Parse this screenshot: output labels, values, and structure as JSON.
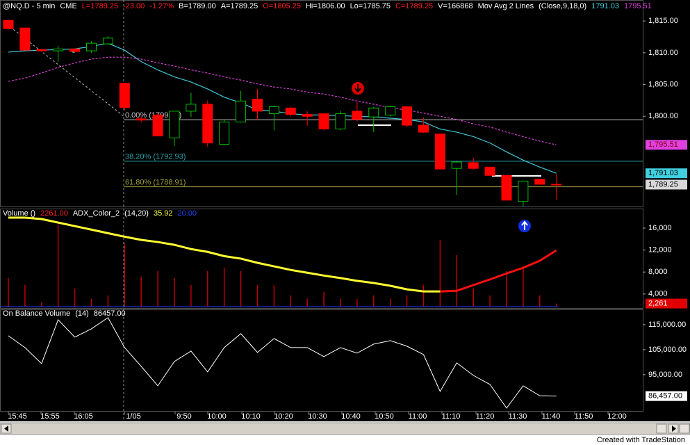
{
  "header": [
    {
      "text": "@NQ.D - 5 min",
      "color": "#ffffff"
    },
    {
      "text": "CME",
      "color": "#ffffff"
    },
    {
      "text": "L=1789.25",
      "color": "#ff2020"
    },
    {
      "text": "-23.00",
      "color": "#ff2020"
    },
    {
      "text": "-1.27%",
      "color": "#ff2020"
    },
    {
      "text": "B=1789.00",
      "color": "#ffffff"
    },
    {
      "text": "A=1789.25",
      "color": "#ffffff"
    },
    {
      "text": "O=1805.25",
      "color": "#ff2020"
    },
    {
      "text": "Hi=1806.00",
      "color": "#ffffff"
    },
    {
      "text": "Lo=1785.75",
      "color": "#ffffff"
    },
    {
      "text": "C=1789.25",
      "color": "#ff2020"
    },
    {
      "text": "V=166868",
      "color": "#ffffff"
    },
    {
      "text": "Mov Avg 2 Lines",
      "color": "#ffffff"
    },
    {
      "text": "(Close,9,18,0)",
      "color": "#ffffff"
    },
    {
      "text": "1791.03",
      "color": "#40d0e0"
    },
    {
      "text": "1795.51",
      "color": "#e040e0"
    }
  ],
  "x_labels": [
    "15:45",
    "15:55",
    "16:05",
    "1/05",
    "9:50",
    "10:00",
    "10:10",
    "10:20",
    "10:30",
    "10:40",
    "10:50",
    "11:00",
    "11:10",
    "11:20",
    "11:30",
    "11:40",
    "11:50",
    "12:00"
  ],
  "footer": "Created with TradeStation",
  "chart_data": [
    {
      "type": "candlestick",
      "up_color": "#00c000",
      "down_color": "#ff0000",
      "open": [
        1815.1,
        1813.9,
        1810.5,
        1810.3,
        1810.6,
        1810.3,
        1811.4,
        1805.2,
        1799.6,
        1800.2,
        1796.6,
        1800.8,
        1801.9,
        1795.6,
        1799.1,
        1802.7,
        1800.4,
        1801.3,
        1800.3,
        1800.4,
        1798.0,
        1800.8,
        1799.9,
        1800.2,
        1801.5,
        1798.6,
        1797.2,
        1791.8,
        1792.7,
        1792.0,
        1790.7,
        1786.6,
        1790.1,
        1789.3
      ],
      "high": [
        1815.1,
        1813.9,
        1810.6,
        1811.1,
        1810.7,
        1811.8,
        1812.6,
        1805.2,
        1800.0,
        1800.6,
        1800.8,
        1803.7,
        1802.5,
        1799.5,
        1804.0,
        1804.3,
        1801.7,
        1801.5,
        1800.8,
        1800.5,
        1800.8,
        1802.2,
        1801.5,
        1801.7,
        1801.6,
        1799.8,
        1797.2,
        1793.0,
        1793.5,
        1792.0,
        1790.7,
        1789.9,
        1790.1,
        1790.9
      ],
      "low": [
        1813.8,
        1810.4,
        1810.2,
        1808.6,
        1810.0,
        1810.0,
        1811.2,
        1801.0,
        1799.0,
        1796.9,
        1795.3,
        1799.9,
        1795.2,
        1795.5,
        1799.0,
        1799.4,
        1797.8,
        1800.0,
        1798.5,
        1797.8,
        1797.8,
        1799.2,
        1797.5,
        1800.0,
        1798.3,
        1797.4,
        1791.7,
        1787.6,
        1791.6,
        1790.7,
        1786.8,
        1785.8,
        1789.3,
        1786.8
      ],
      "close": [
        1813.8,
        1810.4,
        1810.3,
        1810.6,
        1810.2,
        1811.5,
        1812.3,
        1801.4,
        1799.4,
        1796.9,
        1800.8,
        1801.9,
        1795.8,
        1799.1,
        1802.4,
        1800.8,
        1801.5,
        1800.3,
        1800.0,
        1798.0,
        1800.4,
        1799.5,
        1801.3,
        1801.5,
        1798.6,
        1797.5,
        1791.7,
        1792.8,
        1791.8,
        1790.7,
        1786.8,
        1789.8,
        1789.3,
        1789.25
      ],
      "lines": [
        {
          "color": "#40c8d8",
          "dash": false,
          "values": [
            1810.1,
            1810.3,
            1810.4,
            1810.5,
            1810.6,
            1811.0,
            1811.5,
            1810.4,
            1808.6,
            1807.3,
            1806.2,
            1805.4,
            1804.3,
            1803.0,
            1802.1,
            1801.0,
            1800.8,
            1800.4,
            1800.2,
            1800.2,
            1800.1,
            1800.0,
            1799.9,
            1799.7,
            1799.5,
            1799.1,
            1798.0,
            1797.5,
            1796.8,
            1795.8,
            1794.4,
            1793.1,
            1792.0,
            1791.03
          ]
        },
        {
          "color": "#d040d0",
          "dash": true,
          "values": [
            1805.5,
            1806.0,
            1806.8,
            1807.7,
            1808.4,
            1809.0,
            1809.3,
            1809.3,
            1809.0,
            1808.4,
            1807.9,
            1807.3,
            1806.8,
            1806.2,
            1805.7,
            1805.1,
            1804.6,
            1804.3,
            1803.8,
            1803.5,
            1803.0,
            1802.4,
            1801.9,
            1801.3,
            1801.0,
            1800.5,
            1800.0,
            1799.5,
            1798.8,
            1798.3,
            1797.5,
            1796.8,
            1796.1,
            1795.51
          ]
        }
      ],
      "levels": [
        {
          "value": 1799.45,
          "label": "0.00% (1799.45)",
          "color": "#c8c8c8"
        },
        {
          "value": 1792.93,
          "label": "38.20% (1792.93)",
          "color": "#2aa0a8"
        },
        {
          "value": 1788.91,
          "label": "61.80% (1788.91)",
          "color": "#a0a040"
        }
      ],
      "last_labels": [
        {
          "value": 1795.51,
          "label": "1,795.51",
          "color": "#e040e0",
          "text_color": "#800000"
        },
        {
          "value": 1791.03,
          "label": "1,791.03",
          "color": "#40d0e0",
          "text_color": "#000000"
        },
        {
          "value": 1789.25,
          "label": "1,789.25",
          "color": "#d8d8d8",
          "text_color": "#000000"
        }
      ],
      "ylim": [
        1785.8,
        1818.3
      ],
      "yticks": [
        {
          "value": 1815,
          "label": "1,815.00"
        },
        {
          "value": 1810,
          "label": "1,810.00"
        },
        {
          "value": 1805,
          "label": "1,805.00"
        },
        {
          "value": 1800,
          "label": "1,800.00"
        }
      ]
    },
    {
      "type": "bar",
      "color": "#c00000",
      "legend": [
        {
          "text": "Volume ()",
          "color": "#ffffff"
        },
        {
          "text": "2261.00",
          "color": "#ff2020"
        },
        {
          "text": "ADX_Color_2",
          "color": "#ffffff"
        },
        {
          "text": "(14,20)",
          "color": "#ffffff"
        },
        {
          "text": "35.92",
          "color": "#ffff40"
        },
        {
          "text": "20.00",
          "color": "#2040ff"
        }
      ],
      "values": [
        6900,
        5640,
        2480,
        16630,
        5010,
        3120,
        3750,
        13220,
        7160,
        8170,
        6900,
        5640,
        8170,
        8800,
        8170,
        5640,
        5640,
        3750,
        3120,
        4380,
        3120,
        3120,
        3750,
        3120,
        3750,
        5640,
        13850,
        11070,
        5010,
        3750,
        8170,
        8800,
        3750,
        2261
      ],
      "ylim": [
        1700,
        17900
      ],
      "yticks": [
        {
          "value": 16000,
          "label": "16,000"
        },
        {
          "value": 12000,
          "label": "12,000"
        },
        {
          "value": 8000,
          "label": "8,000"
        },
        {
          "value": 4000,
          "label": "4,000"
        }
      ],
      "last_labels": [
        {
          "value": 2261,
          "label": "2,261",
          "color": "#e00000",
          "text_color": "#ffffff"
        }
      ],
      "adx": {
        "rising_color": "#ff1010",
        "falling_color": "#ffff30",
        "threshold": 20,
        "threshold_color": "#2040ff",
        "y2lim": [
          20,
          45.2
        ],
        "values": [
          45.2,
          45.2,
          44.8,
          43.8,
          42.8,
          41.8,
          40.8,
          39.8,
          38.9,
          38.3,
          37.5,
          36.3,
          35.5,
          34.3,
          33.6,
          32.4,
          31.4,
          30.4,
          29.6,
          28.8,
          28.1,
          27.3,
          26.7,
          25.9,
          24.9,
          24.3,
          24.3,
          24.5,
          26.1,
          27.7,
          29.4,
          31.0,
          33.0,
          35.92
        ]
      }
    },
    {
      "type": "line",
      "color": "#ffffff",
      "legend": [
        {
          "text": "On Balance Volume",
          "color": "#ffffff"
        },
        {
          "text": "(14)",
          "color": "#ffffff"
        },
        {
          "text": "86457.00",
          "color": "#ffffff"
        }
      ],
      "values": [
        110560,
        105830,
        99440,
        116940,
        110000,
        113330,
        117780,
        105830,
        98330,
        90560,
        100280,
        104440,
        96110,
        105830,
        111390,
        103890,
        109440,
        105830,
        105830,
        102220,
        105830,
        103610,
        107220,
        108610,
        106390,
        103060,
        88330,
        99720,
        94720,
        91110,
        81670,
        90560,
        86600,
        86457
      ],
      "ylim": [
        80800,
        118300
      ],
      "yticks": [
        {
          "value": 115000,
          "label": "115,000.00"
        },
        {
          "value": 105000,
          "label": "105,000.00"
        },
        {
          "value": 95000,
          "label": "95,000.00"
        }
      ],
      "last_labels": [
        {
          "value": 86457,
          "label": "86,457.00",
          "color": "#ffffff",
          "text_color": "#000000"
        }
      ]
    }
  ]
}
